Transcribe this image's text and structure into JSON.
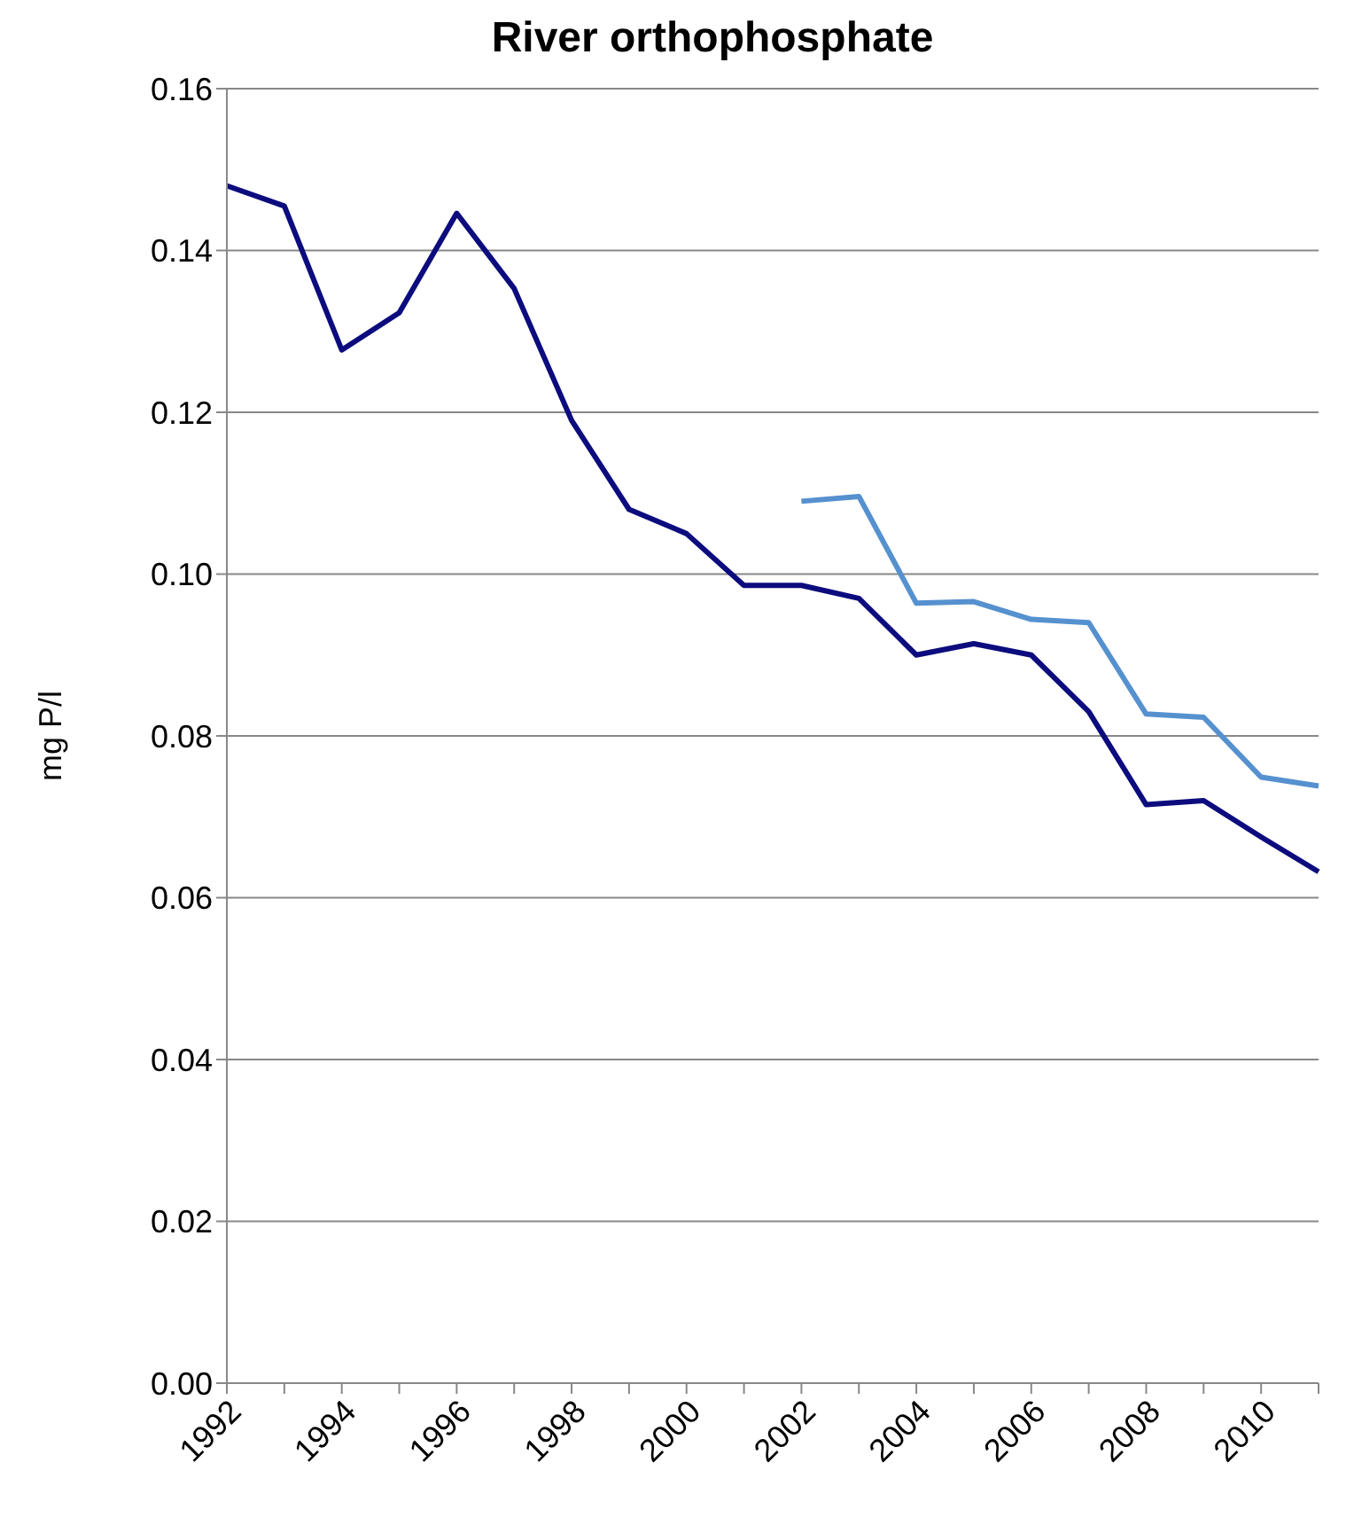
{
  "chart_data": {
    "type": "line",
    "title": "River orthophosphate",
    "ylabel": "mg P/l",
    "categories": [
      "1992",
      null,
      "1994",
      null,
      "1996",
      null,
      "1998",
      null,
      "2000",
      null,
      "2002",
      null,
      "2004",
      null,
      "2006",
      null,
      "2008",
      null,
      "2010",
      null
    ],
    "series": [
      {
        "color": "#0c0c7e",
        "values": [
          0.148,
          0.1455,
          0.1277,
          0.1323,
          0.1446,
          0.1353,
          0.119,
          0.108,
          0.105,
          0.0986,
          0.0986,
          0.097,
          0.09,
          0.0914,
          0.09,
          0.083,
          0.0715,
          0.072,
          0.0675,
          0.0632
        ]
      },
      {
        "color": "#5691cf",
        "values": [
          null,
          null,
          null,
          null,
          null,
          null,
          null,
          null,
          null,
          null,
          0.109,
          0.1096,
          0.0964,
          0.0966,
          0.0944,
          0.094,
          0.0827,
          0.0823,
          0.0749,
          0.0738
        ]
      }
    ],
    "ylim": [
      0,
      0.16
    ],
    "yticks": [
      {
        "value": 0,
        "label": "0.00"
      },
      {
        "value": 0.02,
        "label": "0.02"
      },
      {
        "value": 0.04,
        "label": "0.04"
      },
      {
        "value": 0.06,
        "label": "0.06"
      },
      {
        "value": 0.08,
        "label": "0.08"
      },
      {
        "value": 0.1,
        "label": "0.10"
      },
      {
        "value": 0.12,
        "label": "0.12"
      },
      {
        "value": 0.14,
        "label": "0.14"
      },
      {
        "value": 0.16,
        "label": "0.16"
      }
    ],
    "grid": "y",
    "marker": "none",
    "line_style": "solid",
    "legend": false
  }
}
